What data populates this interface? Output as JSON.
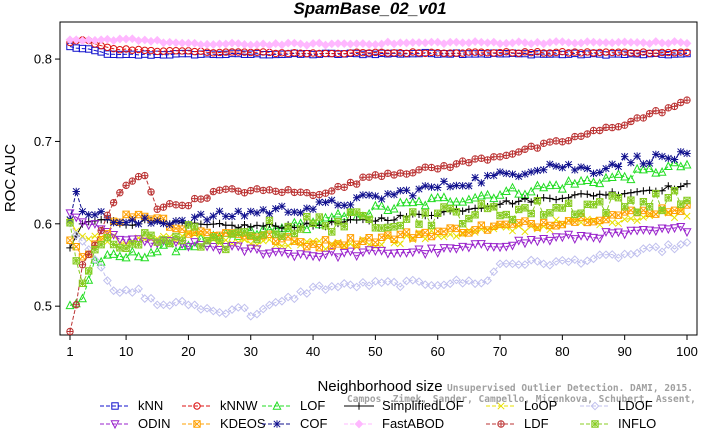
{
  "chart_data": {
    "type": "line",
    "title": "SpamBase_02_v01",
    "xlabel": "Neighborhood size",
    "ylabel": "ROC AUC",
    "xlim": [
      1,
      100
    ],
    "ylim": [
      0.465,
      0.845
    ],
    "x_ticks": [
      1,
      10,
      20,
      30,
      40,
      50,
      60,
      70,
      80,
      90,
      100
    ],
    "y_ticks": [
      0.5,
      0.6,
      0.7,
      0.8
    ],
    "x_tick_labels": [
      "1",
      "10",
      "20",
      "30",
      "40",
      "50",
      "60",
      "70",
      "80",
      "90",
      "100"
    ],
    "y_tick_labels": [
      "0.5",
      "0.6",
      "0.7",
      "0.8"
    ],
    "grid": false,
    "legend_position": "bottom",
    "series": [
      {
        "name": "kNN",
        "color": "#1010cc",
        "marker": "square",
        "dash": true,
        "kp": [
          [
            1,
            0.815
          ],
          [
            5,
            0.81
          ],
          [
            8,
            0.805
          ],
          [
            20,
            0.806
          ],
          [
            40,
            0.806
          ],
          [
            60,
            0.807
          ],
          [
            80,
            0.806
          ],
          [
            100,
            0.806
          ]
        ],
        "noise": 0.001
      },
      {
        "name": "kNNW",
        "color": "#dd1010",
        "marker": "circle",
        "dash": true,
        "kp": [
          [
            1,
            0.82
          ],
          [
            3,
            0.824
          ],
          [
            8,
            0.812
          ],
          [
            20,
            0.809
          ],
          [
            40,
            0.807
          ],
          [
            60,
            0.808
          ],
          [
            80,
            0.808
          ],
          [
            100,
            0.808
          ]
        ],
        "noise": 0.001
      },
      {
        "name": "LOF",
        "color": "#22dd22",
        "marker": "triangle",
        "dash": true,
        "kp": [
          [
            1,
            0.5
          ],
          [
            3,
            0.51
          ],
          [
            5,
            0.555
          ],
          [
            10,
            0.56
          ],
          [
            20,
            0.575
          ],
          [
            30,
            0.588
          ],
          [
            40,
            0.6
          ],
          [
            50,
            0.617
          ],
          [
            60,
            0.628
          ],
          [
            70,
            0.637
          ],
          [
            80,
            0.647
          ],
          [
            90,
            0.658
          ],
          [
            100,
            0.672
          ]
        ],
        "noise": 0.006
      },
      {
        "name": "SimplifiedLOF",
        "color": "#000000",
        "marker": "plus",
        "dash": false,
        "kp": [
          [
            1,
            0.568
          ],
          [
            3,
            0.6
          ],
          [
            6,
            0.605
          ],
          [
            10,
            0.6
          ],
          [
            15,
            0.605
          ],
          [
            20,
            0.598
          ],
          [
            30,
            0.597
          ],
          [
            40,
            0.598
          ],
          [
            50,
            0.605
          ],
          [
            60,
            0.613
          ],
          [
            70,
            0.625
          ],
          [
            80,
            0.633
          ],
          [
            90,
            0.638
          ],
          [
            100,
            0.646
          ]
        ],
        "noise": 0.003
      },
      {
        "name": "LoOP",
        "color": "#e8e000",
        "marker": "x",
        "dash": true,
        "kp": [
          [
            1,
            0.6
          ],
          [
            5,
            0.58
          ],
          [
            10,
            0.58
          ],
          [
            20,
            0.585
          ],
          [
            30,
            0.576
          ],
          [
            40,
            0.573
          ],
          [
            50,
            0.578
          ],
          [
            60,
            0.587
          ],
          [
            70,
            0.592
          ],
          [
            80,
            0.6
          ],
          [
            90,
            0.607
          ],
          [
            100,
            0.615
          ]
        ],
        "noise": 0.006
      },
      {
        "name": "LDOF",
        "color": "#c0c0ee",
        "marker": "diamond",
        "dash": true,
        "kp": [
          [
            1,
            0.6
          ],
          [
            3,
            0.58
          ],
          [
            6,
            0.55
          ],
          [
            8,
            0.515
          ],
          [
            12,
            0.518
          ],
          [
            15,
            0.502
          ],
          [
            20,
            0.503
          ],
          [
            25,
            0.492
          ],
          [
            28,
            0.5
          ],
          [
            30,
            0.49
          ],
          [
            35,
            0.505
          ],
          [
            40,
            0.522
          ],
          [
            50,
            0.527
          ],
          [
            60,
            0.528
          ],
          [
            68,
            0.53
          ],
          [
            70,
            0.552
          ],
          [
            80,
            0.553
          ],
          [
            90,
            0.562
          ],
          [
            100,
            0.575
          ]
        ],
        "noise": 0.004
      },
      {
        "name": "ODIN",
        "color": "#9922cc",
        "marker": "triangle-down",
        "dash": true,
        "kp": [
          [
            1,
            0.61
          ],
          [
            4,
            0.6
          ],
          [
            8,
            0.585
          ],
          [
            12,
            0.578
          ],
          [
            20,
            0.575
          ],
          [
            30,
            0.568
          ],
          [
            40,
            0.562
          ],
          [
            50,
            0.565
          ],
          [
            60,
            0.567
          ],
          [
            70,
            0.575
          ],
          [
            80,
            0.583
          ],
          [
            90,
            0.588
          ],
          [
            100,
            0.594
          ]
        ],
        "noise": 0.004
      },
      {
        "name": "KDEOS",
        "color": "#ffa000",
        "marker": "boxed-x",
        "dash": true,
        "kp": [
          [
            1,
            0.585
          ],
          [
            3,
            0.56
          ],
          [
            5,
            0.575
          ],
          [
            8,
            0.6
          ],
          [
            11,
            0.612
          ],
          [
            15,
            0.608
          ],
          [
            20,
            0.59
          ],
          [
            30,
            0.587
          ],
          [
            40,
            0.575
          ],
          [
            50,
            0.582
          ],
          [
            60,
            0.59
          ],
          [
            70,
            0.597
          ],
          [
            80,
            0.603
          ],
          [
            90,
            0.612
          ],
          [
            100,
            0.62
          ]
        ],
        "noise": 0.005
      },
      {
        "name": "COF",
        "color": "#10108e",
        "marker": "asterisk",
        "dash": true,
        "kp": [
          [
            1,
            0.6
          ],
          [
            2,
            0.642
          ],
          [
            3,
            0.62
          ],
          [
            6,
            0.61
          ],
          [
            10,
            0.6
          ],
          [
            20,
            0.605
          ],
          [
            30,
            0.614
          ],
          [
            40,
            0.62
          ],
          [
            50,
            0.632
          ],
          [
            60,
            0.645
          ],
          [
            70,
            0.658
          ],
          [
            78,
            0.672
          ],
          [
            85,
            0.665
          ],
          [
            90,
            0.677
          ],
          [
            100,
            0.682
          ]
        ],
        "noise": 0.006
      },
      {
        "name": "FastABOD",
        "color": "#ffb8ff",
        "marker": "diamond-filled",
        "dash": true,
        "kp": [
          [
            1,
            0.822
          ],
          [
            5,
            0.822
          ],
          [
            10,
            0.825
          ],
          [
            20,
            0.818
          ],
          [
            40,
            0.818
          ],
          [
            60,
            0.82
          ],
          [
            80,
            0.82
          ],
          [
            100,
            0.82
          ]
        ],
        "noise": 0.0015
      },
      {
        "name": "LDF",
        "color": "#bb3333",
        "marker": "circle-plus",
        "dash": true,
        "kp": [
          [
            1,
            0.47
          ],
          [
            2,
            0.5
          ],
          [
            3,
            0.55
          ],
          [
            5,
            0.575
          ],
          [
            8,
            0.625
          ],
          [
            10,
            0.647
          ],
          [
            13,
            0.66
          ],
          [
            15,
            0.62
          ],
          [
            20,
            0.625
          ],
          [
            25,
            0.64
          ],
          [
            30,
            0.64
          ],
          [
            35,
            0.64
          ],
          [
            40,
            0.636
          ],
          [
            45,
            0.645
          ],
          [
            50,
            0.66
          ],
          [
            55,
            0.663
          ],
          [
            60,
            0.668
          ],
          [
            70,
            0.683
          ],
          [
            80,
            0.7
          ],
          [
            90,
            0.722
          ],
          [
            100,
            0.748
          ]
        ],
        "noise": 0.003
      },
      {
        "name": "INFLO",
        "color": "#88cc22",
        "marker": "star-box",
        "dash": true,
        "kp": [
          [
            1,
            0.6
          ],
          [
            3,
            0.53
          ],
          [
            5,
            0.57
          ],
          [
            10,
            0.575
          ],
          [
            15,
            0.58
          ],
          [
            20,
            0.59
          ],
          [
            25,
            0.57
          ],
          [
            30,
            0.59
          ],
          [
            40,
            0.6
          ],
          [
            50,
            0.605
          ],
          [
            60,
            0.61
          ],
          [
            70,
            0.615
          ],
          [
            80,
            0.62
          ],
          [
            90,
            0.625
          ],
          [
            100,
            0.63
          ]
        ],
        "noise": 0.012
      }
    ]
  },
  "watermark_lines": [
    "Campos, Zimek, Sander, Campello, Micenkova, Schubert, Assent, Houle"
  ],
  "watermark_prefix": "Unsupervised Outlier Detection. DAMI, 2015."
}
